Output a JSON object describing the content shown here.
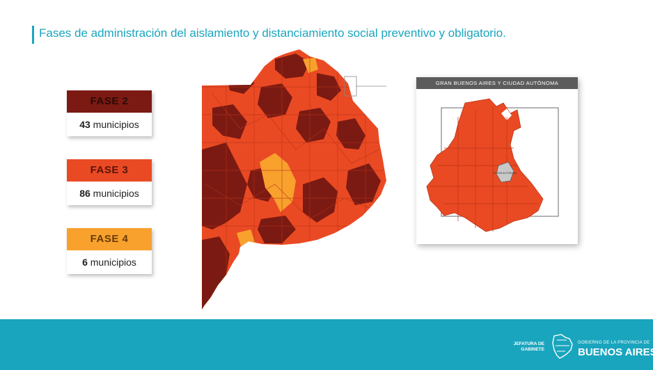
{
  "header": {
    "title": "Fases de administración del aislamiento y distanciamiento social preventivo y obligatorio."
  },
  "legend": {
    "items": [
      {
        "phase": "FASE 2",
        "count": "43",
        "unit": "municipios",
        "color": "#7b1a12",
        "text_color": "#2a0a06"
      },
      {
        "phase": "FASE 3",
        "count": "86",
        "unit": "municipios",
        "color": "#ea4a23",
        "text_color": "#5a1408"
      },
      {
        "phase": "FASE 4",
        "count": "6",
        "unit": "municipios",
        "color": "#f8a12d",
        "text_color": "#6a3a05"
      }
    ]
  },
  "inset": {
    "title": "GRAN BUENOS AIRES Y CIUDAD AUTÓNOMA",
    "caba_label": "CIUDAD AUTÓNOMA"
  },
  "footer": {
    "org_line1": "JEFATURA DE",
    "org_line2": "GABINETE",
    "gov_small": "GOBIERNO DE LA PROVINCIA DE",
    "gov_big": "BUENOS AIRES"
  },
  "colors": {
    "accent": "#1aa5be",
    "phase2": "#7b1a12",
    "phase3": "#ea4a23",
    "phase4": "#f8a12d",
    "caba": "#c8c8c8"
  }
}
